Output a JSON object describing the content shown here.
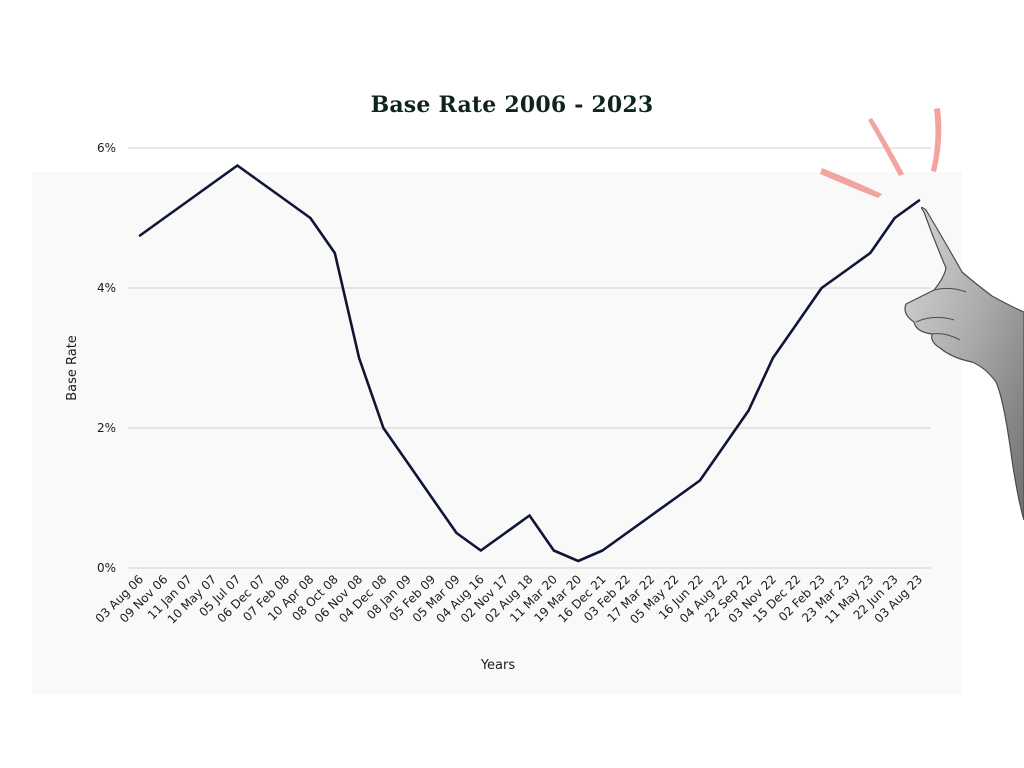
{
  "colors": {
    "line": "#0f1535",
    "grid": "#cfcfcf",
    "panel": "#f9f9f9",
    "title": "#10241e",
    "accent_marks": "#f3a3a0"
  },
  "decoration": {
    "hand_icon": "pointing-hand-icon",
    "marks_icon": "attention-marks-icon"
  },
  "chart_data": {
    "type": "line",
    "title": "Base Rate 2006 - 2023",
    "xlabel": "Years",
    "ylabel": "Base Rate",
    "ylim": [
      0,
      6
    ],
    "yticks": [
      "0%",
      "2%",
      "4%",
      "6%"
    ],
    "grid": true,
    "categories": [
      "03 Aug 06",
      "09 Nov 06",
      "11 Jan 07",
      "10 May 07",
      "05 Jul 07",
      "06 Dec 07",
      "07 Feb 08",
      "10 Apr 08",
      "08 Oct 08",
      "06 Nov 08",
      "04 Dec 08",
      "08 Jan 09",
      "05 Feb 09",
      "05 Mar 09",
      "04 Aug 16",
      "02 Nov 17",
      "02 Aug 18",
      "11 Mar 20",
      "19 Mar 20",
      "16 Dec 21",
      "03 Feb 22",
      "17 Mar 22",
      "05 May 22",
      "16 Jun 22",
      "04 Aug 22",
      "22 Sep 22",
      "03 Nov 22",
      "15 Dec 22",
      "02 Feb 23",
      "23 Mar 23",
      "11 May 23",
      "22 Jun 23",
      "03 Aug 23"
    ],
    "series": [
      {
        "values": [
          4.75,
          5.0,
          5.25,
          5.5,
          5.75,
          5.5,
          5.25,
          5.0,
          4.5,
          3.0,
          2.0,
          1.5,
          1.0,
          0.5,
          0.25,
          0.5,
          0.75,
          0.25,
          0.1,
          0.25,
          0.5,
          0.75,
          1.0,
          1.25,
          1.75,
          2.25,
          3.0,
          3.5,
          4.0,
          4.25,
          4.5,
          5.0,
          5.25
        ]
      }
    ]
  }
}
